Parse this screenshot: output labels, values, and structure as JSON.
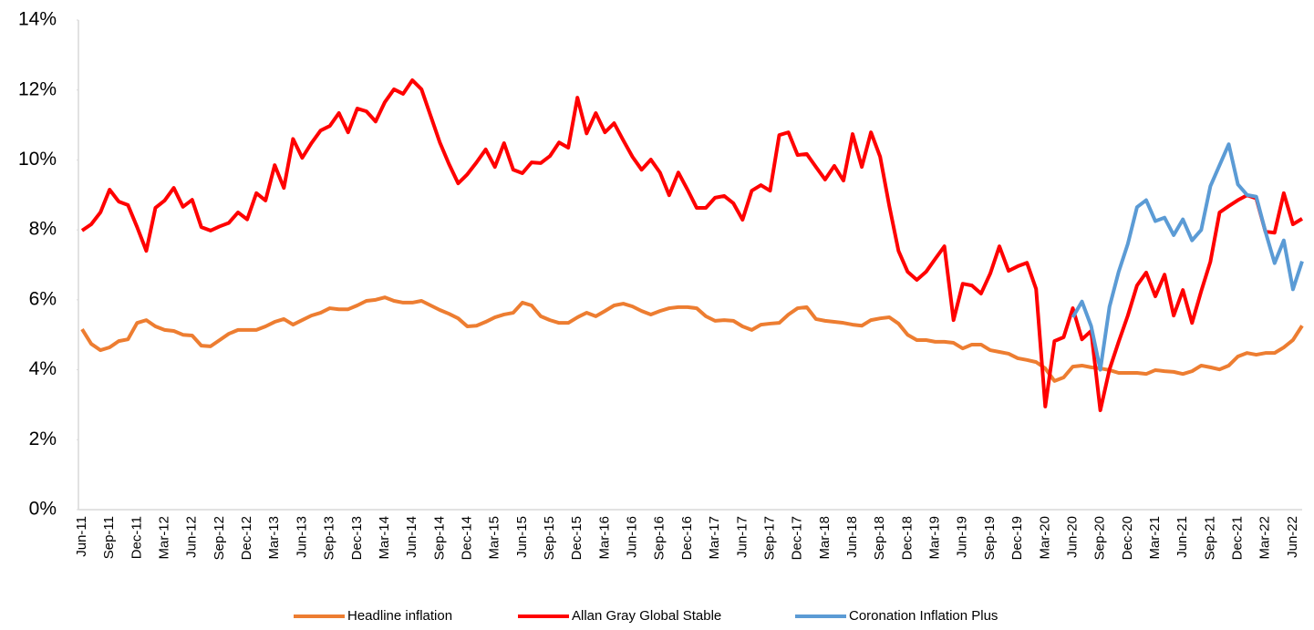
{
  "chart_data": {
    "type": "line",
    "categories": [
      "Jun-11",
      null,
      null,
      "Sep-11",
      null,
      null,
      "Dec-11",
      null,
      null,
      "Mar-12",
      null,
      null,
      "Jun-12",
      null,
      null,
      "Sep-12",
      null,
      null,
      "Dec-12",
      null,
      null,
      "Mar-13",
      null,
      null,
      "Jun-13",
      null,
      null,
      "Sep-13",
      null,
      null,
      "Dec-13",
      null,
      null,
      "Mar-14",
      null,
      null,
      "Jun-14",
      null,
      null,
      "Sep-14",
      null,
      null,
      "Dec-14",
      null,
      null,
      "Mar-15",
      null,
      null,
      "Jun-15",
      null,
      null,
      "Sep-15",
      null,
      null,
      "Dec-15",
      null,
      null,
      "Mar-16",
      null,
      null,
      "Jun-16",
      null,
      null,
      "Sep-16",
      null,
      null,
      "Dec-16",
      null,
      null,
      "Mar-17",
      null,
      null,
      "Jun-17",
      null,
      null,
      "Sep-17",
      null,
      null,
      "Dec-17",
      null,
      null,
      "Mar-18",
      null,
      null,
      "Jun-18",
      null,
      null,
      "Sep-18",
      null,
      null,
      "Dec-18",
      null,
      null,
      "Mar-19",
      null,
      null,
      "Jun-19",
      null,
      null,
      "Sep-19",
      null,
      null,
      "Dec-19",
      null,
      null,
      "Mar-20",
      null,
      null,
      "Jun-20",
      null,
      null,
      "Sep-20",
      null,
      null,
      "Dec-20",
      null,
      null,
      "Mar-21",
      null,
      null,
      "Jun-21",
      null,
      null,
      "Sep-21",
      null,
      null,
      "Dec-21",
      null,
      null,
      "Mar-22",
      null,
      null,
      "Jun-22",
      null
    ],
    "series": [
      {
        "name": "Headline inflation",
        "color": "#ED7D31",
        "values": [
          5.16,
          4.74,
          4.56,
          4.64,
          4.82,
          4.87,
          5.34,
          5.42,
          5.24,
          5.14,
          5.11,
          5.0,
          4.98,
          4.69,
          4.67,
          4.85,
          5.03,
          5.14,
          5.14,
          5.14,
          5.24,
          5.37,
          5.45,
          5.29,
          5.42,
          5.55,
          5.63,
          5.76,
          5.73,
          5.73,
          5.84,
          5.97,
          6.0,
          6.07,
          5.97,
          5.92,
          5.92,
          5.97,
          5.84,
          5.71,
          5.6,
          5.47,
          5.24,
          5.26,
          5.37,
          5.5,
          5.58,
          5.63,
          5.92,
          5.84,
          5.53,
          5.42,
          5.34,
          5.34,
          5.5,
          5.63,
          5.53,
          5.68,
          5.84,
          5.89,
          5.81,
          5.68,
          5.58,
          5.68,
          5.76,
          5.79,
          5.79,
          5.76,
          5.53,
          5.4,
          5.42,
          5.4,
          5.24,
          5.14,
          5.29,
          5.32,
          5.34,
          5.58,
          5.76,
          5.79,
          5.45,
          5.4,
          5.37,
          5.34,
          5.29,
          5.26,
          5.42,
          5.47,
          5.5,
          5.32,
          5.0,
          4.85,
          4.85,
          4.8,
          4.8,
          4.77,
          4.61,
          4.72,
          4.72,
          4.56,
          4.51,
          4.46,
          4.33,
          4.28,
          4.22,
          4.04,
          3.68,
          3.78,
          4.09,
          4.12,
          4.07,
          4.04,
          3.99,
          3.91,
          3.91,
          3.91,
          3.88,
          3.99,
          3.96,
          3.94,
          3.88,
          3.96,
          4.12,
          4.07,
          4.01,
          4.12,
          4.38,
          4.48,
          4.43,
          4.48,
          4.48,
          4.64,
          4.85,
          5.26
        ]
      },
      {
        "name": "Allan Gray Global Stable",
        "color": "#FF0000",
        "values": [
          7.98,
          8.16,
          8.5,
          9.15,
          8.81,
          8.71,
          8.08,
          7.4,
          8.63,
          8.84,
          9.2,
          8.66,
          8.86,
          8.08,
          7.98,
          8.1,
          8.2,
          8.5,
          8.3,
          9.05,
          8.84,
          9.85,
          9.2,
          10.6,
          10.06,
          10.48,
          10.84,
          10.97,
          11.34,
          10.79,
          11.47,
          11.39,
          11.1,
          11.65,
          12.02,
          11.89,
          12.28,
          12.02,
          11.26,
          10.5,
          9.88,
          9.33,
          9.59,
          9.93,
          10.3,
          9.8,
          10.48,
          9.72,
          9.62,
          9.93,
          9.91,
          10.11,
          10.5,
          10.35,
          11.78,
          10.76,
          11.34,
          10.79,
          11.05,
          10.56,
          10.09,
          9.72,
          10.01,
          9.64,
          8.99,
          9.64,
          9.15,
          8.63,
          8.63,
          8.92,
          8.97,
          8.76,
          8.29,
          9.12,
          9.28,
          9.12,
          10.71,
          10.79,
          10.14,
          10.17,
          9.8,
          9.44,
          9.83,
          9.41,
          10.74,
          9.8,
          10.79,
          10.09,
          8.68,
          7.4,
          6.8,
          6.57,
          6.8,
          7.17,
          7.53,
          5.42,
          6.46,
          6.41,
          6.18,
          6.75,
          7.53,
          6.83,
          6.96,
          7.06,
          6.31,
          2.95,
          4.82,
          4.93,
          5.76,
          4.87,
          5.11,
          2.84,
          4.01,
          4.8,
          5.55,
          6.41,
          6.78,
          6.1,
          6.72,
          5.55,
          6.28,
          5.34,
          6.25,
          7.09,
          8.5,
          8.68,
          8.85,
          8.99,
          8.9,
          7.95,
          7.92,
          9.05,
          8.16,
          8.32
        ]
      },
      {
        "name": "Coronation Inflation Plus",
        "color": "#5B9BD5",
        "values": [
          null,
          null,
          null,
          null,
          null,
          null,
          null,
          null,
          null,
          null,
          null,
          null,
          null,
          null,
          null,
          null,
          null,
          null,
          null,
          null,
          null,
          null,
          null,
          null,
          null,
          null,
          null,
          null,
          null,
          null,
          null,
          null,
          null,
          null,
          null,
          null,
          null,
          null,
          null,
          null,
          null,
          null,
          null,
          null,
          null,
          null,
          null,
          null,
          null,
          null,
          null,
          null,
          null,
          null,
          null,
          null,
          null,
          null,
          null,
          null,
          null,
          null,
          null,
          null,
          null,
          null,
          null,
          null,
          null,
          null,
          null,
          null,
          null,
          null,
          null,
          null,
          null,
          null,
          null,
          null,
          null,
          null,
          null,
          null,
          null,
          null,
          null,
          null,
          null,
          null,
          null,
          null,
          null,
          null,
          null,
          null,
          null,
          null,
          null,
          null,
          null,
          null,
          null,
          null,
          null,
          null,
          null,
          null,
          5.5,
          5.95,
          5.25,
          4.0,
          5.8,
          6.8,
          7.6,
          8.65,
          8.85,
          8.25,
          8.35,
          7.85,
          8.3,
          7.7,
          8.0,
          9.25,
          9.85,
          10.45,
          9.3,
          9.0,
          8.95,
          7.95,
          7.05,
          7.7,
          6.3,
          7.1
        ]
      }
    ],
    "ylim": [
      0,
      14
    ],
    "yticks": [
      {
        "value": 0,
        "label": "0%"
      },
      {
        "value": 2,
        "label": "2%"
      },
      {
        "value": 4,
        "label": "4%"
      },
      {
        "value": 6,
        "label": "6%"
      },
      {
        "value": 8,
        "label": "8%"
      },
      {
        "value": 10,
        "label": "10%"
      },
      {
        "value": 12,
        "label": "12%"
      },
      {
        "value": 14,
        "label": "14%"
      }
    ],
    "grid": false,
    "legend": "bottom"
  }
}
